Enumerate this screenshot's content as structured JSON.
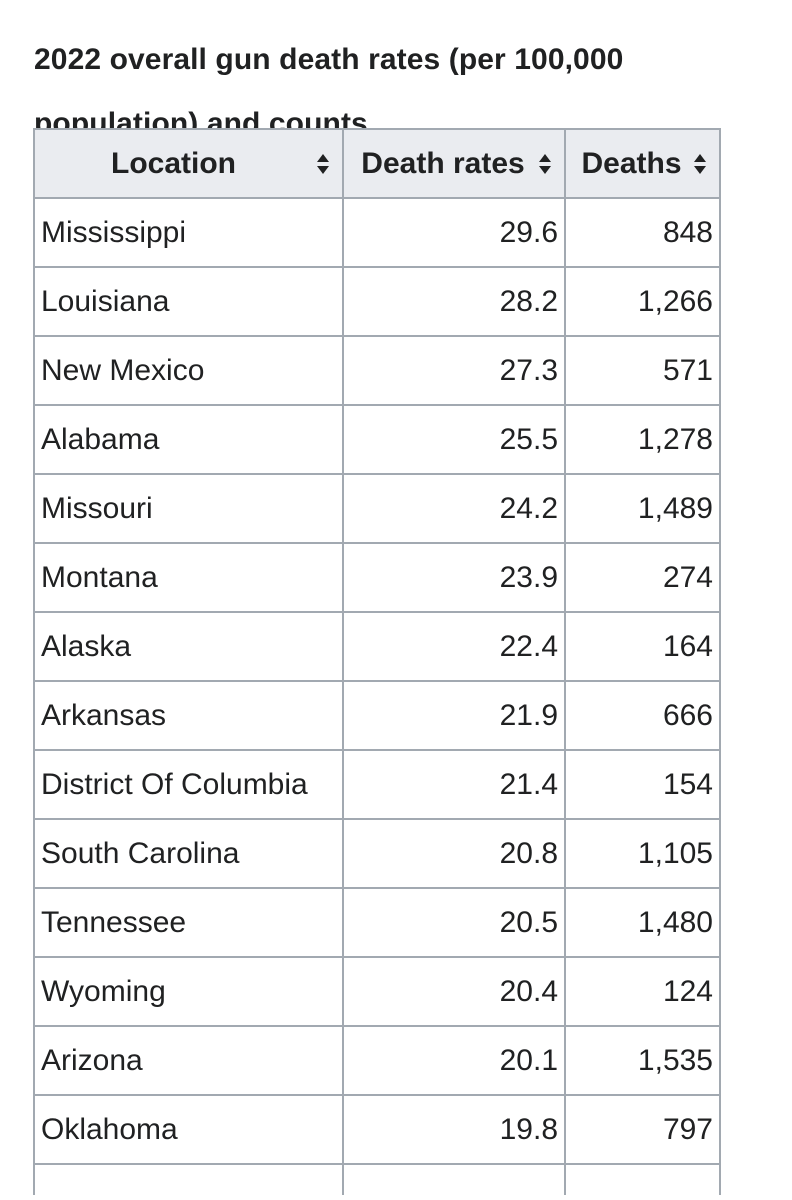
{
  "caption": {
    "line1": "2022 overall gun death rates (per 100,000",
    "line2": "population) and counts"
  },
  "table": {
    "headers": {
      "location": "Location",
      "death_rates": "Death rates",
      "deaths": "Deaths"
    },
    "sort_icon": "sort-updown-icon",
    "rows": [
      {
        "location": "Mississippi",
        "death_rate": "29.6",
        "deaths": "848"
      },
      {
        "location": "Louisiana",
        "death_rate": "28.2",
        "deaths": "1,266"
      },
      {
        "location": "New Mexico",
        "death_rate": "27.3",
        "deaths": "571"
      },
      {
        "location": "Alabama",
        "death_rate": "25.5",
        "deaths": "1,278"
      },
      {
        "location": "Missouri",
        "death_rate": "24.2",
        "deaths": "1,489"
      },
      {
        "location": "Montana",
        "death_rate": "23.9",
        "deaths": "274"
      },
      {
        "location": "Alaska",
        "death_rate": "22.4",
        "deaths": "164"
      },
      {
        "location": "Arkansas",
        "death_rate": "21.9",
        "deaths": "666"
      },
      {
        "location": "District Of Columbia",
        "death_rate": "21.4",
        "deaths": "154"
      },
      {
        "location": "South Carolina",
        "death_rate": "20.8",
        "deaths": "1,105"
      },
      {
        "location": "Tennessee",
        "death_rate": "20.5",
        "deaths": "1,480"
      },
      {
        "location": "Wyoming",
        "death_rate": "20.4",
        "deaths": "124"
      },
      {
        "location": "Arizona",
        "death_rate": "20.1",
        "deaths": "1,535"
      },
      {
        "location": "Oklahoma",
        "death_rate": "19.8",
        "deaths": "797"
      }
    ]
  },
  "colors": {
    "header_bg": "#eaecf0",
    "border": "#a2a9b1",
    "text": "#202122"
  }
}
